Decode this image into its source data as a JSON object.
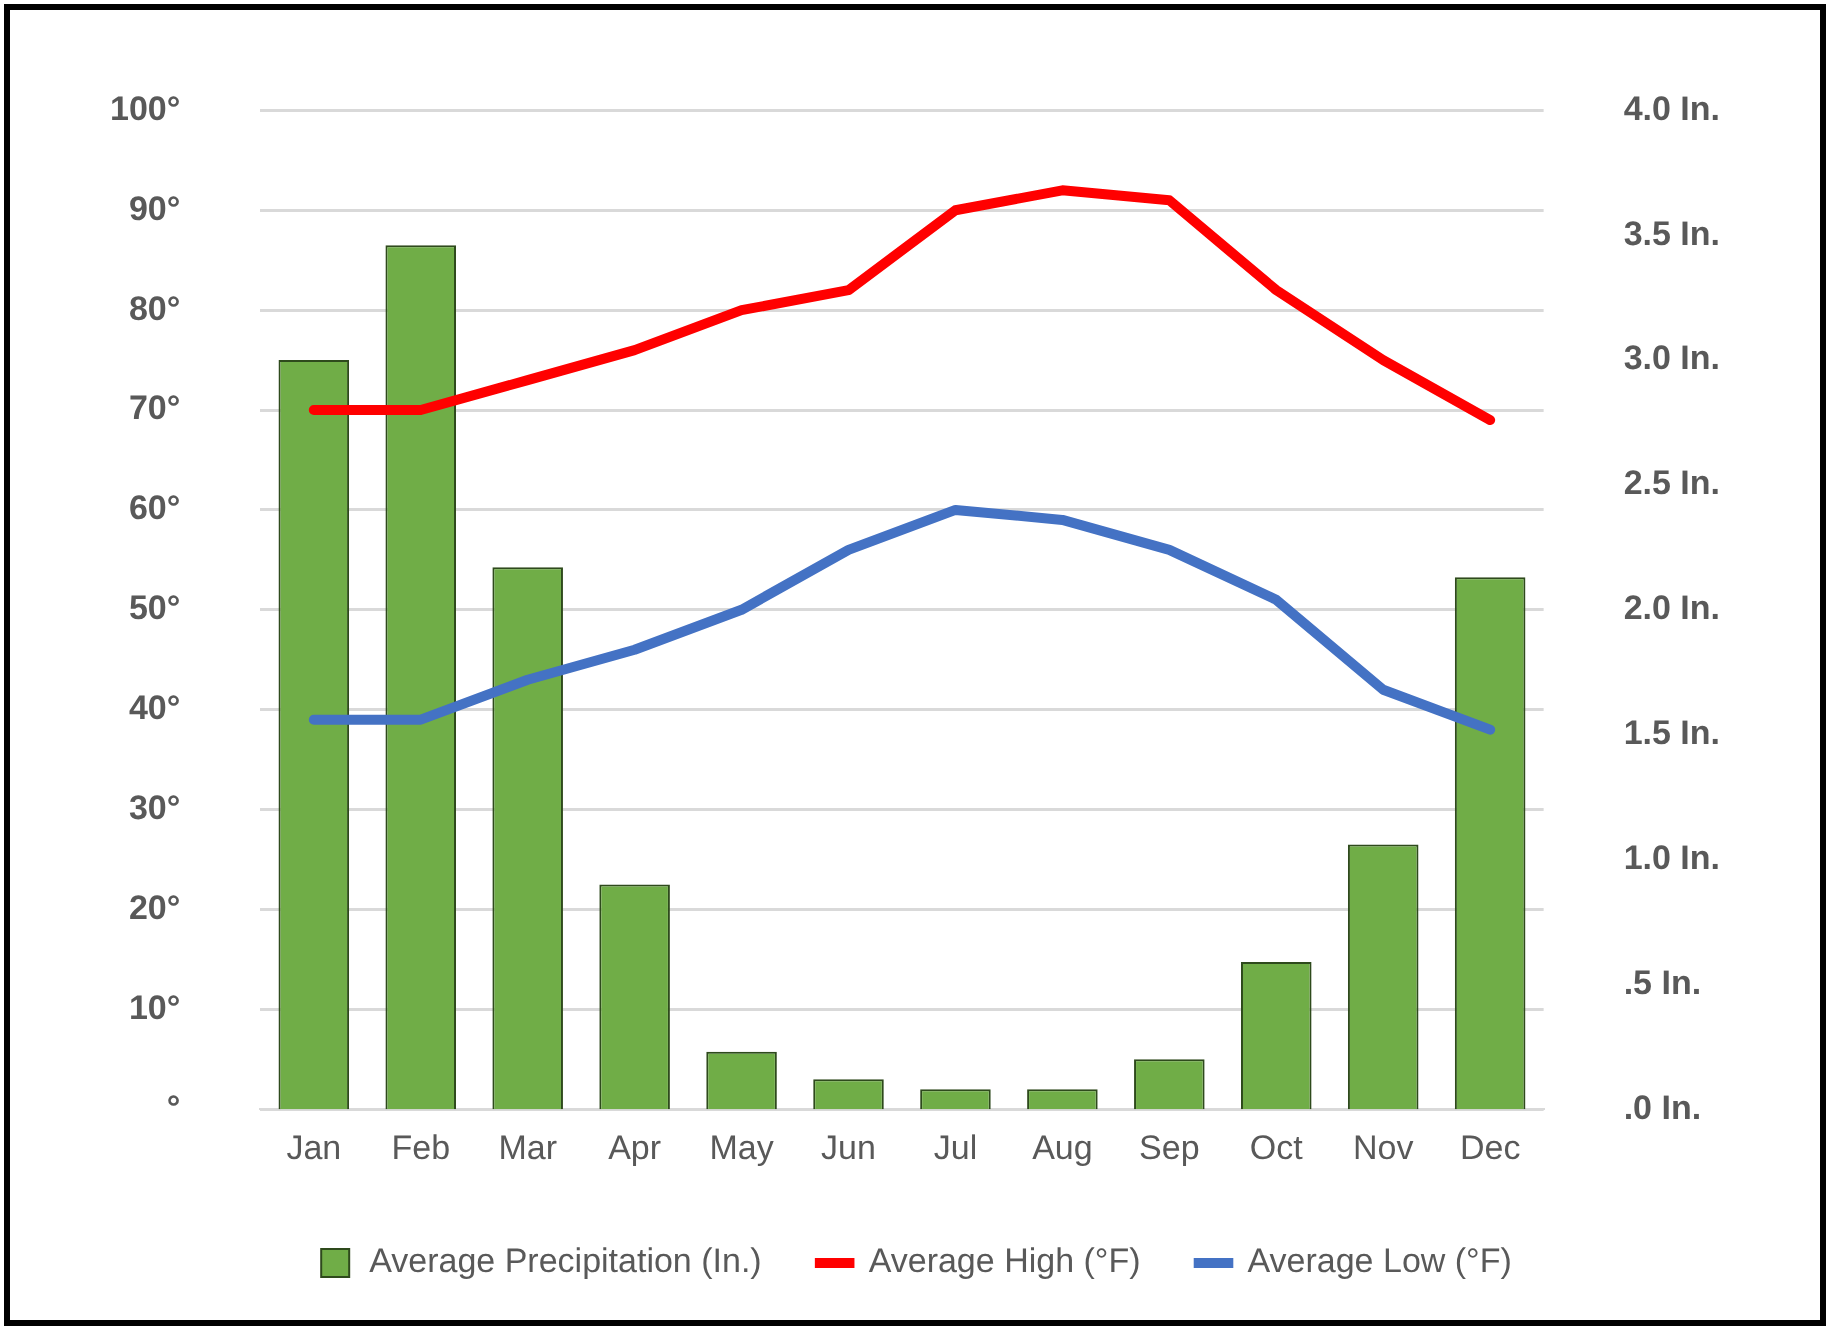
{
  "chart_data": {
    "type": "bar",
    "categories": [
      "Jan",
      "Feb",
      "Mar",
      "Apr",
      "May",
      "Jun",
      "Jul",
      "Aug",
      "Sep",
      "Oct",
      "Nov",
      "Dec"
    ],
    "series": [
      {
        "name": "Average Precipitation (In.)",
        "axis": "y2",
        "color": "#70ad47",
        "values": [
          3.0,
          3.46,
          2.17,
          0.9,
          0.23,
          0.12,
          0.08,
          0.08,
          0.2,
          0.59,
          1.06,
          2.13
        ]
      },
      {
        "name": "Average High (°F)",
        "type": "line",
        "color": "#ff0000",
        "values": [
          70,
          70,
          73,
          76,
          80,
          82,
          90,
          92,
          91,
          82,
          75,
          69
        ]
      },
      {
        "name": "Average Low (°F)",
        "type": "line",
        "color": "#4472c4",
        "values": [
          39,
          39,
          43,
          46,
          50,
          56,
          60,
          59,
          56,
          51,
          42,
          38
        ]
      }
    ],
    "ylim": [
      0,
      100
    ],
    "yticks": [
      {
        "value": 0,
        "label": "°"
      },
      {
        "value": 10,
        "label": "10°"
      },
      {
        "value": 20,
        "label": "20°"
      },
      {
        "value": 30,
        "label": "30°"
      },
      {
        "value": 40,
        "label": "40°"
      },
      {
        "value": 50,
        "label": "50°"
      },
      {
        "value": 60,
        "label": "60°"
      },
      {
        "value": 70,
        "label": "70°"
      },
      {
        "value": 80,
        "label": "80°"
      },
      {
        "value": 90,
        "label": "90°"
      },
      {
        "value": 100,
        "label": "100°"
      }
    ],
    "y2lim": [
      0,
      4
    ],
    "y2ticks": [
      {
        "value": 0,
        "label": ".0 In."
      },
      {
        "value": 0.5,
        "label": ".5 In."
      },
      {
        "value": 1,
        "label": "1.0 In."
      },
      {
        "value": 1.5,
        "label": "1.5 In."
      },
      {
        "value": 2,
        "label": "2.0 In."
      },
      {
        "value": 2.5,
        "label": "2.5 In."
      },
      {
        "value": 3,
        "label": "3.0 In."
      },
      {
        "value": 3.5,
        "label": "3.5 In."
      },
      {
        "value": 4,
        "label": "4.0 In."
      }
    ],
    "grid": "y",
    "legend": "bottom",
    "line_style": "solid"
  }
}
